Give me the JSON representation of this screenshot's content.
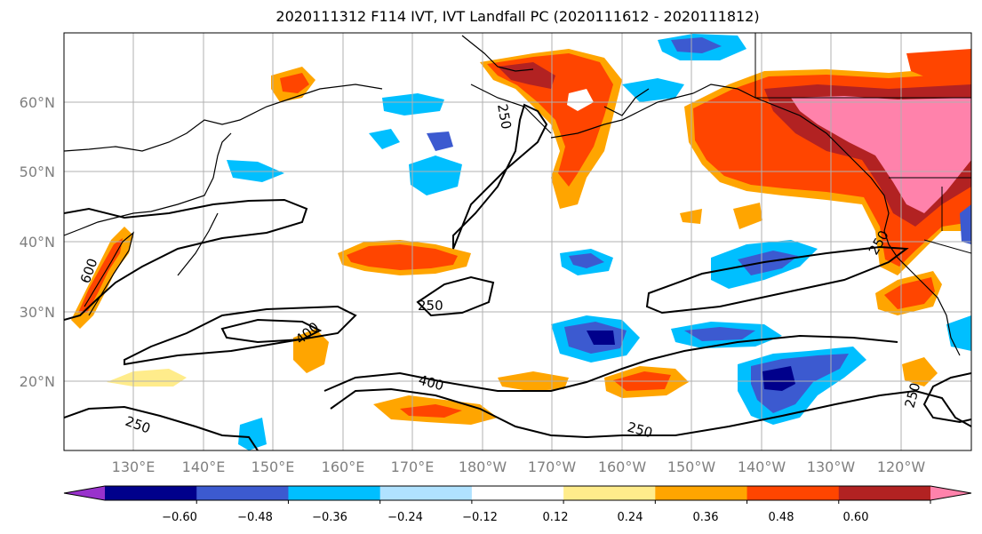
{
  "title": "2020111312 F114 IVT, IVT Landfall PC (2020111612 - 2020111812)",
  "latitude_labels": [
    "20°N",
    "30°N",
    "40°N",
    "50°N",
    "60°N"
  ],
  "longitude_labels": [
    "130°E",
    "140°E",
    "150°E",
    "160°E",
    "170°E",
    "180°W",
    "170°W",
    "160°W",
    "150°W",
    "140°W",
    "130°W",
    "120°W"
  ],
  "colorbar": {
    "tick_labels": [
      "−0.60",
      "−0.48",
      "−0.36",
      "−0.24",
      "−0.12",
      "0.12",
      "0.24",
      "0.36",
      "0.48",
      "0.60"
    ],
    "colors": [
      "#9932cc",
      "#00008b",
      "#3c5ad0",
      "#00bfff",
      "#b0e2ff",
      "#ffffff",
      "#ffec8b",
      "#ffa500",
      "#ff4500",
      "#b22222",
      "#ff82ab"
    ]
  },
  "contour_labels": [
    "600",
    "400",
    "250",
    "250",
    "400",
    "250",
    "250",
    "250",
    "250"
  ]
}
